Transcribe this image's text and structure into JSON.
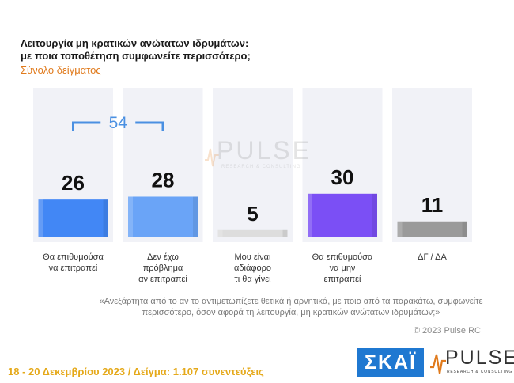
{
  "question": {
    "line1": "Λειτουργία μη κρατικών ανώτατων ιδρυμάτων:",
    "line2": "με ποια τοποθέτηση συμφωνείτε περισσότερο;"
  },
  "sample_label": "Σύνολο δείγματος",
  "chart_data": {
    "type": "bar",
    "title": "",
    "categories": [
      [
        "Θα επιθυμούσα",
        "να επιτραπεί"
      ],
      [
        "Δεν έχω",
        "πρόβλημα",
        "αν επιτραπεί"
      ],
      [
        "Μου είναι",
        "αδιάφορο",
        "τι θα γίνει"
      ],
      [
        "Θα επιθυμούσα",
        "να μην",
        "επιτραπεί"
      ],
      [
        "ΔΓ / ΔΑ"
      ]
    ],
    "values": [
      26,
      28,
      5,
      30,
      11
    ],
    "bar_colors": [
      "#4287f5",
      "#6aa4f7",
      "#dddddd",
      "#7b4ff5",
      "#9a9a9a"
    ],
    "ylim": [
      0,
      100
    ],
    "annotations": [
      {
        "text": "54",
        "spans": [
          0,
          1
        ],
        "color": "#4a90e2"
      }
    ]
  },
  "footnote": "«Ανεξάρτητα από το αν το αντιμετωπίζετε θετικά ή αρνητικά, με ποιο από τα παρακάτω, συμφωνείτε περισσότερο, όσον αφορά τη λειτουργία, μη κρατικών ανώτατων ιδρυμάτων;»",
  "copyright": "© 2023 Pulse RC",
  "footer": "18 - 20 Δεκεμβρίου 2023 / Δείγμα: 1.107 συνεντεύξεις",
  "logos": {
    "skai": "ΣΚΑΪ",
    "pulse": "PULSE",
    "pulse_tagline": "RESEARCH & CONSULTING"
  }
}
